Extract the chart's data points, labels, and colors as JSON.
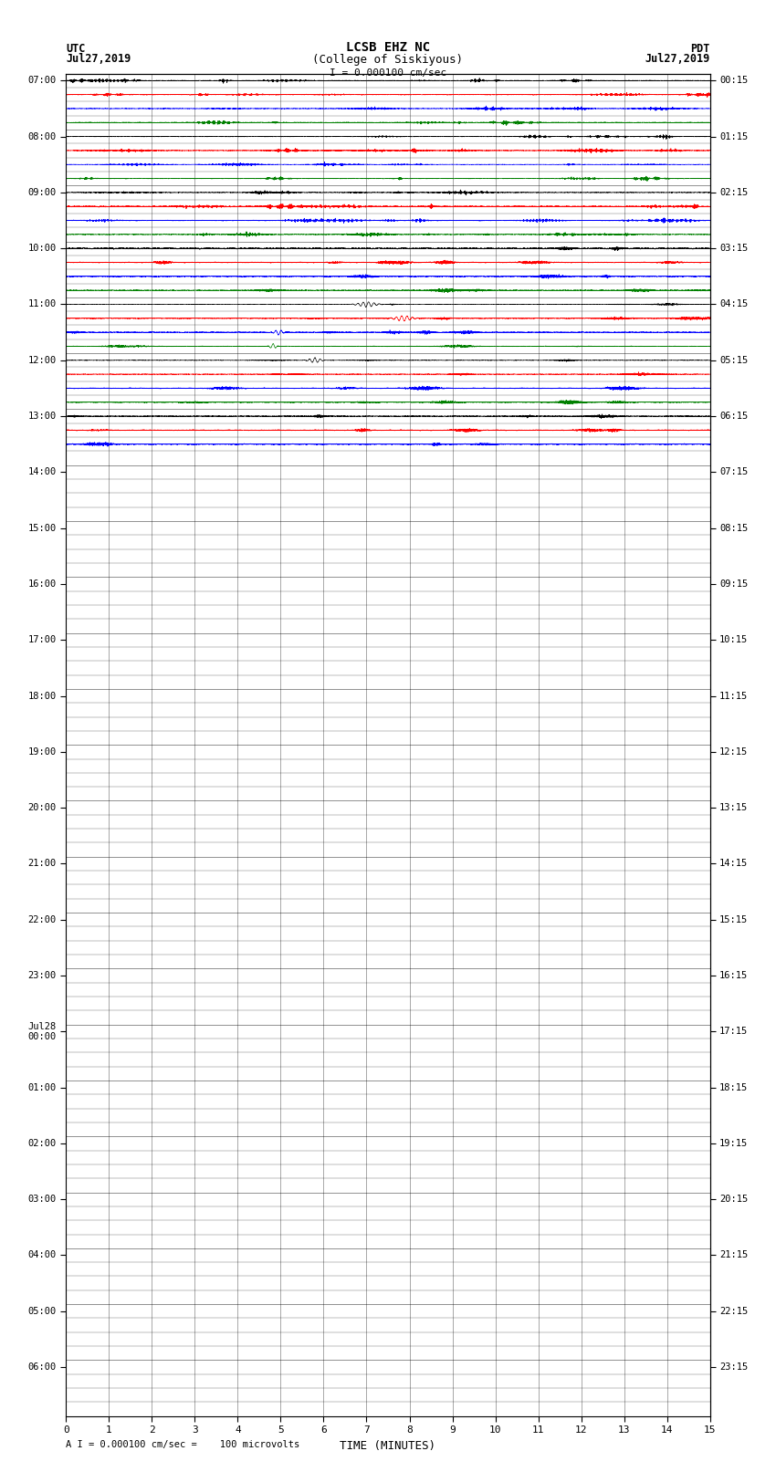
{
  "title_line1": "LCSB EHZ NC",
  "title_line2": "(College of Siskiyous)",
  "scale_label": "I = 0.000100 cm/sec",
  "footer_label": "A I = 0.000100 cm/sec =    100 microvolts",
  "xlabel": "TIME (MINUTES)",
  "left_labels_utc": [
    "07:00",
    "",
    "",
    "",
    "08:00",
    "",
    "",
    "",
    "09:00",
    "",
    "",
    "",
    "10:00",
    "",
    "",
    "",
    "11:00",
    "",
    "",
    "",
    "12:00",
    "",
    "",
    "",
    "13:00",
    "",
    "",
    "",
    "14:00",
    "",
    "",
    "",
    "15:00",
    "",
    "",
    "",
    "16:00",
    "",
    "",
    "",
    "17:00",
    "",
    "",
    "",
    "18:00",
    "",
    "",
    "",
    "19:00",
    "",
    "",
    "",
    "20:00",
    "",
    "",
    "",
    "21:00",
    "",
    "",
    "",
    "22:00",
    "",
    "",
    "",
    "23:00",
    "",
    "",
    "",
    "Jul28\n00:00",
    "",
    "",
    "",
    "01:00",
    "",
    "",
    "",
    "02:00",
    "",
    "",
    "",
    "03:00",
    "",
    "",
    "",
    "04:00",
    "",
    "",
    "",
    "05:00",
    "",
    "",
    "",
    "06:00",
    "",
    "",
    ""
  ],
  "right_labels_pdt": [
    "00:15",
    "",
    "",
    "",
    "01:15",
    "",
    "",
    "",
    "02:15",
    "",
    "",
    "",
    "03:15",
    "",
    "",
    "",
    "04:15",
    "",
    "",
    "",
    "05:15",
    "",
    "",
    "",
    "06:15",
    "",
    "",
    "",
    "07:15",
    "",
    "",
    "",
    "08:15",
    "",
    "",
    "",
    "09:15",
    "",
    "",
    "",
    "10:15",
    "",
    "",
    "",
    "11:15",
    "",
    "",
    "",
    "12:15",
    "",
    "",
    "",
    "13:15",
    "",
    "",
    "",
    "14:15",
    "",
    "",
    "",
    "15:15",
    "",
    "",
    "",
    "16:15",
    "",
    "",
    "",
    "17:15",
    "",
    "",
    "",
    "18:15",
    "",
    "",
    "",
    "19:15",
    "",
    "",
    "",
    "20:15",
    "",
    "",
    "",
    "21:15",
    "",
    "",
    "",
    "22:15",
    "",
    "",
    "",
    "23:15",
    "",
    "",
    ""
  ],
  "n_rows": 96,
  "n_active_rows": 27,
  "active_colors": [
    "black",
    "red",
    "blue",
    "green"
  ],
  "fig_width": 8.5,
  "fig_height": 16.13,
  "bg_color": "white",
  "grid_color": "#000000",
  "minute_ticks": [
    0,
    1,
    2,
    3,
    4,
    5,
    6,
    7,
    8,
    9,
    10,
    11,
    12,
    13,
    14,
    15
  ],
  "xmin": 0,
  "xmax": 15
}
